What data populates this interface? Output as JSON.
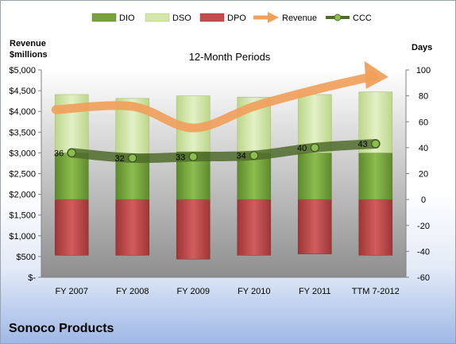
{
  "chart_data": {
    "type": "bar",
    "title": "12-Month Periods",
    "company": "Sonoco Products",
    "y_left_label_lines": [
      "Revenue",
      "$millions"
    ],
    "y_right_label": "Days",
    "categories": [
      "FY 2007",
      "FY 2008",
      "FY 2009",
      "FY 2010",
      "FY 2011",
      "TTM 7-2012"
    ],
    "y_left_ticks": [
      "$-",
      "$500",
      "$1,000",
      "$1,500",
      "$2,000",
      "$2,500",
      "$3,000",
      "$3,500",
      "$4,000",
      "$4,500",
      "$5,000"
    ],
    "y_left_range": [
      0,
      5000
    ],
    "y_right_ticks": [
      "-60",
      "-40",
      "-20",
      "0",
      "20",
      "40",
      "60",
      "80",
      "100"
    ],
    "y_right_range": [
      -60,
      100
    ],
    "legend_position": "top",
    "series": [
      {
        "name": "DIO",
        "axis": "right",
        "kind": "stacked-bar",
        "color": "#77a23f",
        "values": [
          36,
          35,
          37,
          36,
          36,
          36
        ]
      },
      {
        "name": "DSO",
        "axis": "right",
        "kind": "stacked-bar",
        "color": "#d3e7a9",
        "values": [
          45,
          43,
          43,
          43,
          45,
          47
        ]
      },
      {
        "name": "DPO",
        "axis": "right",
        "kind": "negative-bar",
        "color": "#c04d4d",
        "values": [
          -43,
          -43,
          -46,
          -43,
          -42,
          -43
        ]
      },
      {
        "name": "Revenue",
        "axis": "left",
        "kind": "line-arrow",
        "color": "#f0a05a",
        "values": [
          4040,
          4120,
          3600,
          4120,
          4520,
          4850
        ]
      },
      {
        "name": "CCC",
        "axis": "right",
        "kind": "line-markers",
        "color": "#4f6b2a",
        "values": [
          36,
          32,
          33,
          34,
          40,
          43
        ]
      }
    ],
    "ccc_labels": [
      "36",
      "32",
      "33",
      "34",
      "40",
      "43"
    ],
    "grid": false
  }
}
